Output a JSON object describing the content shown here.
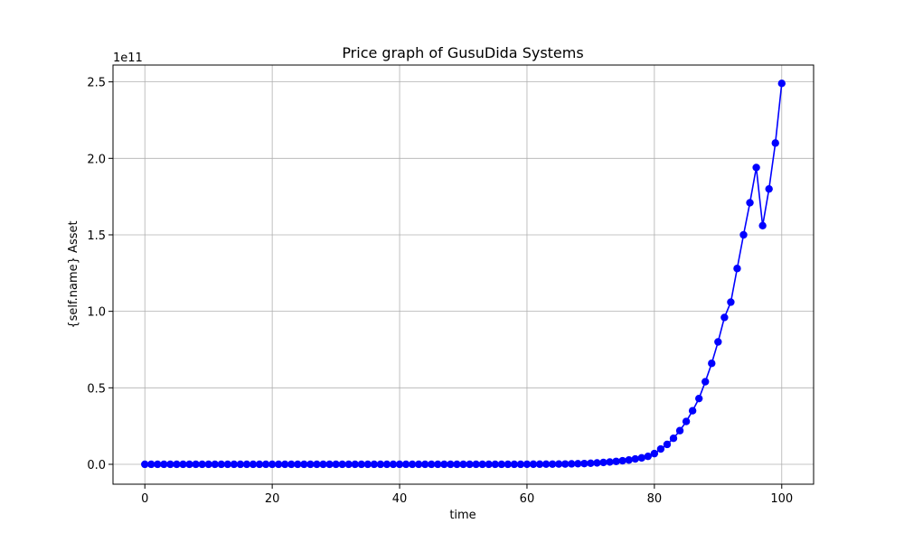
{
  "chart_data": {
    "type": "line",
    "title": "Price graph of GusuDida Systems",
    "xlabel": "time",
    "ylabel": "{self.name} Asset",
    "y_scale_label": "1e11",
    "xlim": [
      -5,
      105
    ],
    "ylim": [
      -0.13,
      2.61
    ],
    "x_ticks": [
      0,
      20,
      40,
      60,
      80,
      100
    ],
    "y_ticks": [
      0.0,
      0.5,
      1.0,
      1.5,
      2.0,
      2.5
    ],
    "x_tick_labels": [
      "0",
      "20",
      "40",
      "60",
      "80",
      "100"
    ],
    "y_tick_labels": [
      "0.0",
      "0.5",
      "1.0",
      "1.5",
      "2.0",
      "2.5"
    ],
    "grid": true,
    "series": [
      {
        "color": "#0000ff",
        "marker": "circle",
        "x": [
          0,
          1,
          2,
          3,
          4,
          5,
          6,
          7,
          8,
          9,
          10,
          11,
          12,
          13,
          14,
          15,
          16,
          17,
          18,
          19,
          20,
          21,
          22,
          23,
          24,
          25,
          26,
          27,
          28,
          29,
          30,
          31,
          32,
          33,
          34,
          35,
          36,
          37,
          38,
          39,
          40,
          41,
          42,
          43,
          44,
          45,
          46,
          47,
          48,
          49,
          50,
          51,
          52,
          53,
          54,
          55,
          56,
          57,
          58,
          59,
          60,
          61,
          62,
          63,
          64,
          65,
          66,
          67,
          68,
          69,
          70,
          71,
          72,
          73,
          74,
          75,
          76,
          77,
          78,
          79,
          80,
          81,
          82,
          83,
          84,
          85,
          86,
          87,
          88,
          89,
          90,
          91,
          92,
          93,
          94,
          95,
          96,
          97,
          98,
          99,
          100
        ],
        "y": [
          0,
          0,
          0,
          0,
          0,
          0,
          0,
          0,
          0,
          0,
          0,
          0,
          0,
          0,
          0,
          0,
          0,
          0,
          0,
          0,
          0,
          0,
          0,
          0,
          0,
          0,
          0,
          0,
          0,
          0,
          0,
          0,
          0,
          0,
          0,
          0,
          0,
          0,
          0,
          0,
          0,
          0,
          0,
          0,
          0,
          0,
          0,
          0,
          0,
          0,
          0,
          0,
          0,
          0,
          0,
          0,
          0,
          0,
          0,
          0,
          0.0005,
          0.0006,
          0.0008,
          0.001,
          0.0013,
          0.0016,
          0.002,
          0.003,
          0.004,
          0.005,
          0.007,
          0.009,
          0.012,
          0.015,
          0.019,
          0.023,
          0.028,
          0.035,
          0.042,
          0.052,
          0.07,
          0.1,
          0.13,
          0.17,
          0.22,
          0.28,
          0.35,
          0.43,
          0.54,
          0.66,
          0.8,
          0.96,
          1.06,
          1.28,
          1.5,
          1.71,
          1.94,
          1.56,
          1.8,
          2.1,
          2.49
        ]
      }
    ]
  }
}
